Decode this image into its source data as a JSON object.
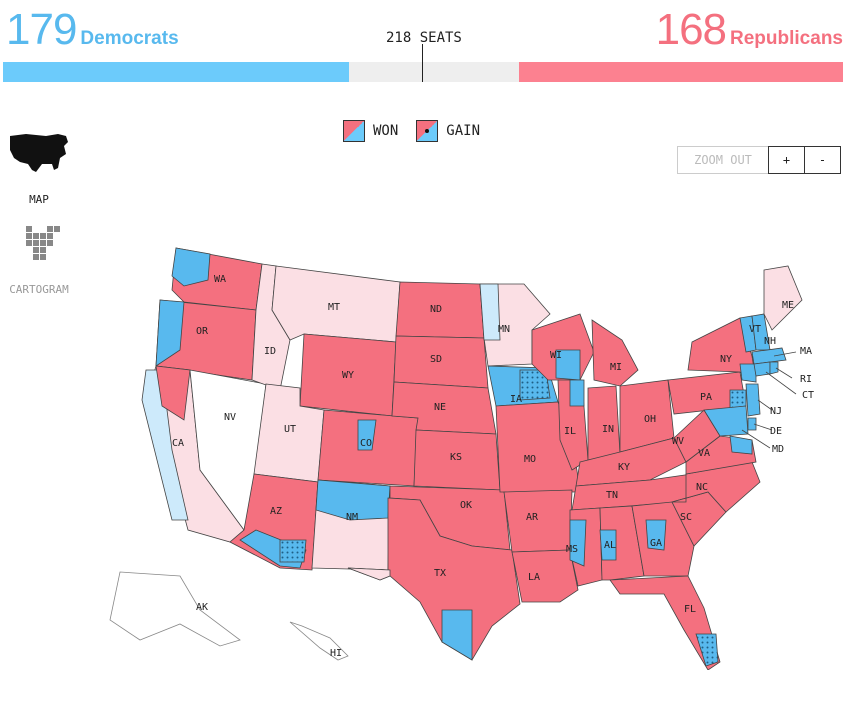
{
  "header": {
    "dem_count": "179",
    "dem_label": "Democrats",
    "rep_count": "168",
    "rep_label": "Republicans",
    "seats_label": "218 SEATS",
    "dem_seats": 179,
    "rep_seats": 168,
    "total_seats": 435,
    "majority": 218
  },
  "legend": {
    "won_label": "WON",
    "gain_label": "GAIN"
  },
  "view": {
    "map_label": "MAP",
    "cartogram_label": "CARTOGRAM"
  },
  "zoom": {
    "out_label": "ZOOM OUT",
    "in_label": "+",
    "minus_label": "-"
  },
  "map": {
    "states": [
      "WA",
      "OR",
      "MT",
      "ND",
      "MN",
      "ID",
      "SD",
      "WY",
      "NV",
      "WI",
      "MI",
      "IA",
      "NE",
      "UT",
      "CO",
      "IL",
      "IN",
      "OH",
      "PA",
      "NY",
      "KS",
      "MO",
      "KY",
      "WV",
      "VA",
      "CA",
      "AZ",
      "NM",
      "OK",
      "AR",
      "TN",
      "NC",
      "SC",
      "MS",
      "AL",
      "GA",
      "TX",
      "LA",
      "FL",
      "AK",
      "HI",
      "ME",
      "VT",
      "NH",
      "MA",
      "RI",
      "CT",
      "NJ",
      "DE",
      "MD"
    ]
  },
  "colors": {
    "dem": "#58b9ee",
    "rep": "#f4707f",
    "dem_light": "#cdeafb",
    "rep_light": "#fbdfe4",
    "uncalled": "#ffffff"
  }
}
